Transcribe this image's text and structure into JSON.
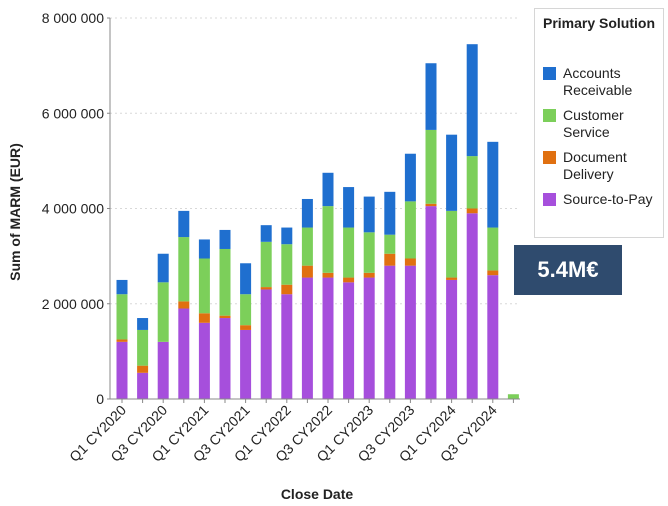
{
  "chart_data": {
    "type": "bar",
    "stacked": true,
    "xlabel": "Close Date",
    "ylabel": "Sum of MARM (EUR)",
    "ylim": [
      0,
      8000000
    ],
    "yticks": [
      0,
      2000000,
      4000000,
      6000000,
      8000000
    ],
    "ytick_labels": [
      "0",
      "2 000 000",
      "4 000 000",
      "6 000 000",
      "8 000 000"
    ],
    "grid": true,
    "legend_title": "Primary Solution",
    "legend_position": "top-right",
    "categories": [
      "Q1 CY2020",
      "Q2 CY2020",
      "Q3 CY2020",
      "Q4 CY2020",
      "Q1 CY2021",
      "Q2 CY2021",
      "Q3 CY2021",
      "Q4 CY2021",
      "Q1 CY2022",
      "Q2 CY2022",
      "Q3 CY2022",
      "Q4 CY2022",
      "Q1 CY2023",
      "Q2 CY2023",
      "Q3 CY2023",
      "Q4 CY2023",
      "Q1 CY2024",
      "Q2 CY2024",
      "Q3 CY2024",
      "Q4 CY2024"
    ],
    "xtick_labels": [
      "Q1 CY2020",
      "",
      "Q3 CY2020",
      "",
      "Q1 CY2021",
      "",
      "Q3 CY2021",
      "",
      "Q1 CY2022",
      "",
      "Q3 CY2022",
      "",
      "Q1 CY2023",
      "",
      "Q3 CY2023",
      "",
      "Q1 CY2024",
      "",
      "Q3 CY2024",
      ""
    ],
    "series": [
      {
        "name": "Source-to-Pay",
        "color": "#a64fdc",
        "values": [
          1200000,
          550000,
          1200000,
          1900000,
          1600000,
          1700000,
          1450000,
          2300000,
          2200000,
          2550000,
          2550000,
          2450000,
          2550000,
          2800000,
          2800000,
          4050000,
          2500000,
          3900000,
          2600000,
          0
        ]
      },
      {
        "name": "Document Delivery",
        "color": "#e07010",
        "values": [
          50000,
          150000,
          0,
          150000,
          200000,
          50000,
          100000,
          50000,
          200000,
          250000,
          100000,
          100000,
          100000,
          250000,
          150000,
          50000,
          50000,
          100000,
          100000,
          0
        ]
      },
      {
        "name": "Customer Service",
        "color": "#7ccf5a",
        "values": [
          950000,
          750000,
          1250000,
          1350000,
          1150000,
          1400000,
          650000,
          950000,
          850000,
          800000,
          1400000,
          1050000,
          850000,
          400000,
          1200000,
          1550000,
          1400000,
          1100000,
          900000,
          100000
        ]
      },
      {
        "name": "Accounts Receivable",
        "color": "#1f6fcf",
        "values": [
          300000,
          250000,
          600000,
          550000,
          400000,
          400000,
          650000,
          350000,
          350000,
          600000,
          700000,
          850000,
          750000,
          900000,
          1000000,
          1400000,
          1600000,
          2350000,
          1800000,
          0
        ]
      }
    ]
  },
  "legend_items": [
    {
      "label": "Accounts Receivable",
      "color": "#1f6fcf"
    },
    {
      "label": "Customer Service",
      "color": "#7ccf5a"
    },
    {
      "label": "Document Delivery",
      "color": "#e07010"
    },
    {
      "label": "Source-to-Pay",
      "color": "#a64fdc"
    }
  ],
  "callout": {
    "text": "5.4M€",
    "color": "#2f4b6e"
  }
}
